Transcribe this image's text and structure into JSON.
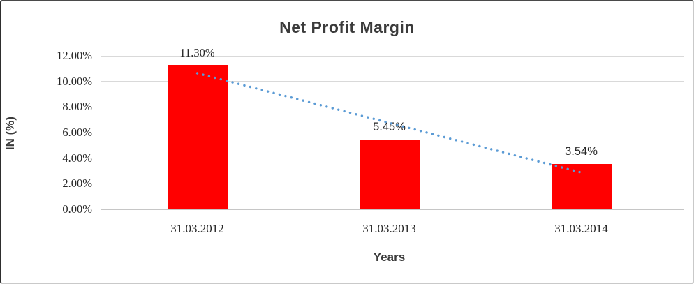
{
  "chart_data": {
    "type": "bar",
    "title": "Net Profit Margin",
    "xlabel": "Years",
    "ylabel": "IN (%)",
    "categories": [
      "31.03.2012",
      "31.03.2013",
      "31.03.2014"
    ],
    "values": [
      11.3,
      5.45,
      3.54
    ],
    "value_labels": [
      "11.30%",
      "5.45%",
      "3.54%"
    ],
    "y_tick_values": [
      0,
      2,
      4,
      6,
      8,
      10,
      12
    ],
    "y_tick_labels": [
      "0.00%",
      "2.00%",
      "4.00%",
      "6.00%",
      "8.00%",
      "10.00%",
      "12.00%"
    ],
    "ylim": [
      0,
      12
    ],
    "grid": "horizontal",
    "legend_position": "none",
    "bar_color": "#FF0000",
    "trendline": {
      "type": "linear",
      "style": "dotted",
      "color": "#5B9BD5",
      "start_value": 10.64,
      "end_value": 2.88
    }
  },
  "colors": {
    "grid": "#d9d9d9",
    "text": "#262626",
    "title": "#3b3b3b"
  }
}
